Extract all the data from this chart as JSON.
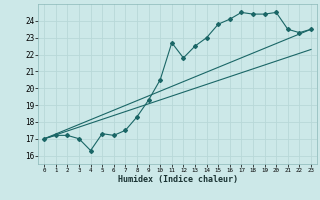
{
  "xlabel": "Humidex (Indice chaleur)",
  "ylabel": "",
  "xlim": [
    -0.5,
    23.5
  ],
  "ylim": [
    15.5,
    25.0
  ],
  "xticks": [
    0,
    1,
    2,
    3,
    4,
    5,
    6,
    7,
    8,
    9,
    10,
    11,
    12,
    13,
    14,
    15,
    16,
    17,
    18,
    19,
    20,
    21,
    22,
    23
  ],
  "yticks": [
    16,
    17,
    18,
    19,
    20,
    21,
    22,
    23,
    24
  ],
  "bg_color": "#cce8e8",
  "grid_color": "#b8d8d8",
  "line_color": "#1a6666",
  "series1_x": [
    0,
    1,
    2,
    3,
    4,
    5,
    6,
    7,
    8,
    9,
    10,
    11,
    12,
    13,
    14,
    15,
    16,
    17,
    18,
    19,
    20,
    21,
    22,
    23
  ],
  "series1_y": [
    17.0,
    17.2,
    17.2,
    17.0,
    16.3,
    17.3,
    17.2,
    17.5,
    18.3,
    19.3,
    20.5,
    22.7,
    21.8,
    22.5,
    23.0,
    23.8,
    24.1,
    24.5,
    24.4,
    24.4,
    24.5,
    23.5,
    23.3,
    23.5
  ],
  "trend1_x": [
    0,
    23
  ],
  "trend1_y": [
    17.0,
    23.5
  ],
  "trend2_x": [
    0,
    23
  ],
  "trend2_y": [
    17.0,
    22.3
  ]
}
